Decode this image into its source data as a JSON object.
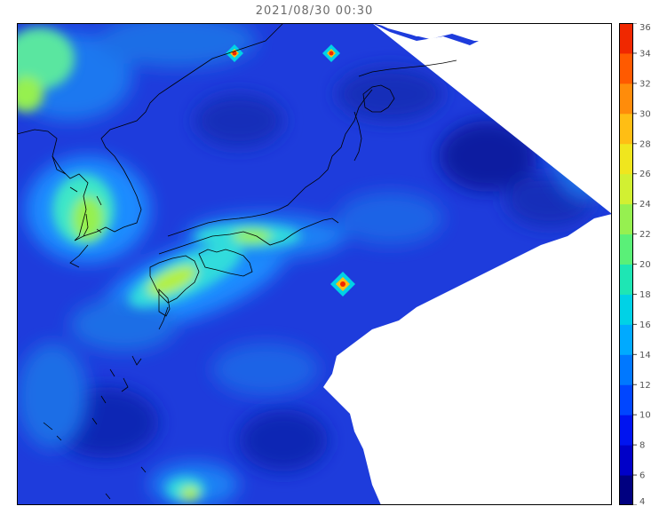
{
  "title": "2021/08/30 00:30",
  "colorbar": {
    "min": 4,
    "max": 36,
    "step": 2,
    "labels": [
      "36",
      "34",
      "32",
      "30",
      "28",
      "26",
      "24",
      "22",
      "20",
      "18",
      "16",
      "14",
      "12",
      "10",
      "8",
      "6",
      "4"
    ],
    "colors": [
      "#000080",
      "#0000c8",
      "#0014f0",
      "#0046ff",
      "#0078ff",
      "#00aaff",
      "#00d2e6",
      "#1ee6b4",
      "#5af078",
      "#96f050",
      "#d2f032",
      "#f0e61e",
      "#ffbe14",
      "#ff8c0a",
      "#ff5a00",
      "#f02800"
    ]
  },
  "map": {
    "background_color": "#1e3cdc",
    "nodata_color": "#ffffff",
    "coastline_color": "#000000"
  }
}
